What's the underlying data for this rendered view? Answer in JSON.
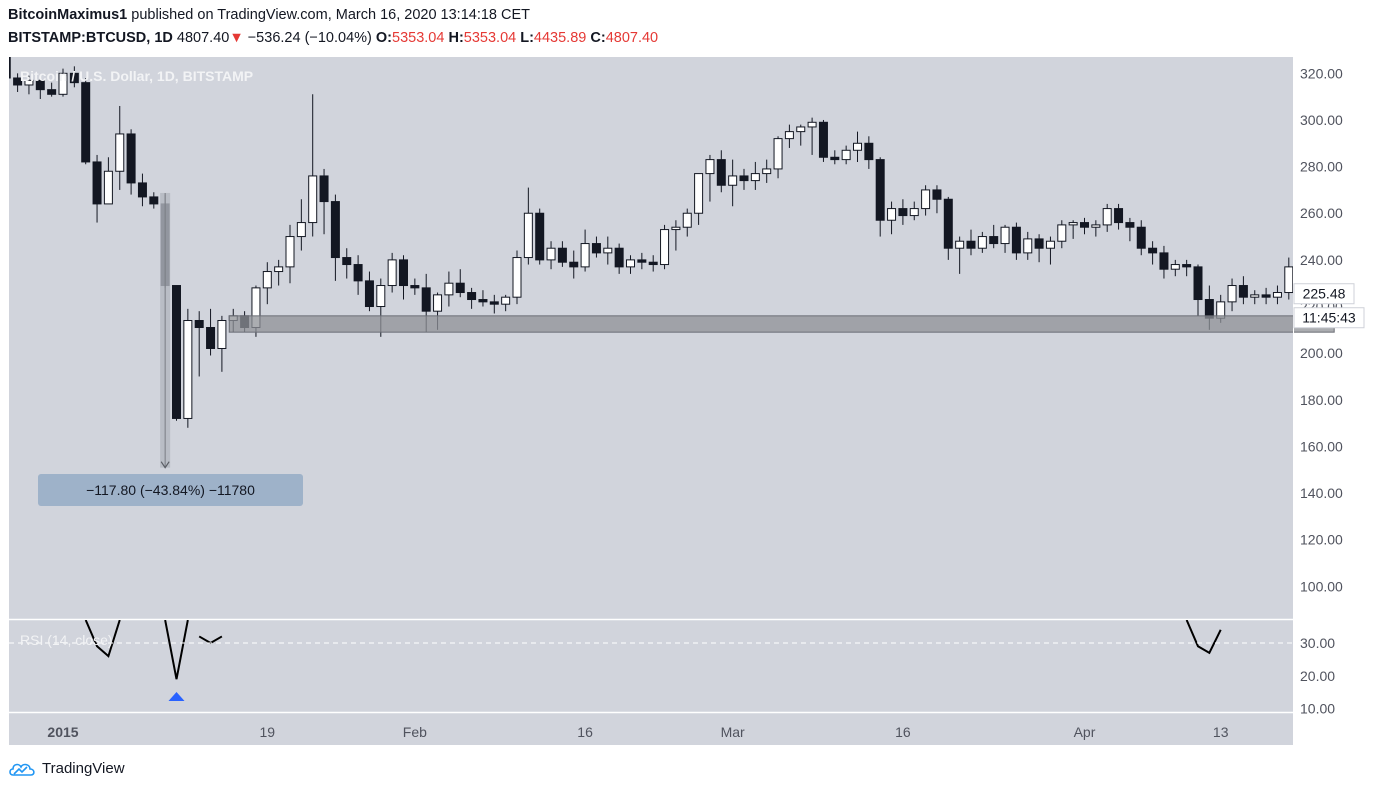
{
  "header": {
    "author": "BitcoinMaximus1",
    "published_text": "published on TradingView.com, March 16, 2020 13:14:18 CET",
    "symbol": "BITSTAMP:BTCUSD, 1D",
    "price": "4807.40",
    "change": "−536.24 (−10.04%)",
    "open_label": "O:",
    "open": "5353.04",
    "high_label": "H:",
    "high": "5353.04",
    "low_label": "L:",
    "low": "4435.89",
    "close_label": "C:",
    "close": "4807.40"
  },
  "chart_title": "Bitcoin / U.S. Dollar, 1D, BITSTAMP",
  "rsi_label": "RSI (14, close)",
  "measure_label": "−117.80 (−43.84%) −11780",
  "last_price_label": "225.48",
  "countdown_label": "11:45:43",
  "footer": {
    "brand": "TradingView"
  },
  "colors": {
    "background": "#d1d4dc",
    "up_candle": "#ffffff",
    "down_candle": "#131722",
    "zone": "#8f9197",
    "measure_box": "#9eb2c9",
    "rsi_line": "#000000",
    "signal_marker": "#2962ff"
  },
  "chart_data": {
    "type": "candlestick",
    "title": "Bitcoin / U.S. Dollar, 1D, BITSTAMP",
    "y_ticks": [
      "320.00",
      "300.00",
      "280.00",
      "260.00",
      "240.00",
      "220.00",
      "200.00",
      "180.00",
      "160.00",
      "140.00",
      "120.00",
      "100.00"
    ],
    "ylim": [
      86,
      327
    ],
    "x_tick_labels": [
      {
        "label": "2015",
        "day": 0,
        "bold": true
      },
      {
        "label": "19",
        "day": 18
      },
      {
        "label": "Feb",
        "day": 31
      },
      {
        "label": "16",
        "day": 46
      },
      {
        "label": "Mar",
        "day": 59
      },
      {
        "label": "16",
        "day": 74
      },
      {
        "label": "Apr",
        "day": 90
      },
      {
        "label": "13",
        "day": 102
      }
    ],
    "x_range_days": [
      -5,
      112
    ],
    "candles": [
      [
        -5,
        330,
        330,
        318,
        318
      ],
      [
        -4,
        318,
        320,
        312,
        315
      ],
      [
        -3,
        315,
        319,
        311,
        317
      ],
      [
        -2,
        317,
        318,
        309,
        313
      ],
      [
        -1,
        313,
        316,
        310,
        311
      ],
      [
        0,
        311,
        322,
        310,
        320
      ],
      [
        1,
        320,
        323,
        314,
        316
      ],
      [
        2,
        316,
        318,
        281,
        282
      ],
      [
        3,
        282,
        285,
        256,
        264
      ],
      [
        4,
        264,
        284,
        264,
        278
      ],
      [
        5,
        278,
        306,
        270,
        294
      ],
      [
        6,
        294,
        296,
        268,
        273
      ],
      [
        7,
        273,
        277,
        263,
        267
      ],
      [
        8,
        267,
        269,
        262,
        264
      ],
      [
        9,
        264,
        268,
        228,
        229
      ],
      [
        10,
        229,
        229,
        171,
        172
      ],
      [
        11,
        172,
        219,
        168,
        214
      ],
      [
        12,
        214,
        218,
        190,
        211
      ],
      [
        13,
        211,
        219,
        199,
        202
      ],
      [
        14,
        202,
        216,
        192,
        214
      ],
      [
        15,
        214,
        219,
        209,
        216
      ],
      [
        16,
        216,
        218,
        209,
        211
      ],
      [
        17,
        211,
        229,
        207,
        228
      ],
      [
        18,
        228,
        239,
        221,
        235
      ],
      [
        19,
        235,
        240,
        229,
        237
      ],
      [
        20,
        237,
        255,
        230,
        250
      ],
      [
        21,
        250,
        266,
        244,
        256
      ],
      [
        22,
        256,
        311,
        250,
        276
      ],
      [
        23,
        276,
        279,
        251,
        265
      ],
      [
        24,
        265,
        268,
        231,
        241
      ],
      [
        25,
        241,
        245,
        232,
        238
      ],
      [
        26,
        238,
        242,
        225,
        231
      ],
      [
        27,
        231,
        235,
        218,
        220
      ],
      [
        28,
        220,
        232,
        207,
        229
      ],
      [
        29,
        229,
        243,
        226,
        240
      ],
      [
        30,
        240,
        242,
        223,
        229
      ],
      [
        31,
        229,
        232,
        225,
        228
      ],
      [
        32,
        228,
        234,
        209,
        218
      ],
      [
        33,
        218,
        226,
        210,
        225
      ],
      [
        34,
        225,
        235,
        220,
        230
      ],
      [
        35,
        230,
        236,
        224,
        226
      ],
      [
        36,
        226,
        228,
        219,
        223
      ],
      [
        37,
        223,
        227,
        220,
        222
      ],
      [
        38,
        222,
        225,
        217,
        221
      ],
      [
        39,
        221,
        225,
        218,
        224
      ],
      [
        40,
        224,
        244,
        221,
        241
      ],
      [
        41,
        241,
        271,
        238,
        260
      ],
      [
        42,
        260,
        262,
        238,
        240
      ],
      [
        43,
        240,
        248,
        236,
        245
      ],
      [
        44,
        245,
        248,
        237,
        239
      ],
      [
        45,
        239,
        244,
        232,
        237
      ],
      [
        46,
        237,
        253,
        235,
        247
      ],
      [
        47,
        247,
        250,
        241,
        243
      ],
      [
        48,
        243,
        250,
        238,
        245
      ],
      [
        49,
        245,
        247,
        234,
        237
      ],
      [
        50,
        237,
        242,
        234,
        240
      ],
      [
        51,
        240,
        243,
        236,
        239
      ],
      [
        52,
        239,
        242,
        235,
        238
      ],
      [
        53,
        238,
        255,
        236,
        253
      ],
      [
        54,
        253,
        257,
        244,
        254
      ],
      [
        55,
        254,
        262,
        250,
        260
      ],
      [
        56,
        260,
        277,
        255,
        277
      ],
      [
        57,
        277,
        285,
        265,
        283
      ],
      [
        58,
        283,
        287,
        269,
        272
      ],
      [
        59,
        272,
        283,
        263,
        276
      ],
      [
        60,
        276,
        279,
        270,
        274
      ],
      [
        61,
        274,
        282,
        270,
        277
      ],
      [
        62,
        277,
        283,
        273,
        279
      ],
      [
        63,
        279,
        293,
        275,
        292
      ],
      [
        64,
        292,
        298,
        288,
        295
      ],
      [
        65,
        295,
        298,
        289,
        297
      ],
      [
        66,
        297,
        301,
        285,
        299
      ],
      [
        67,
        299,
        300,
        282,
        284
      ],
      [
        68,
        284,
        287,
        281,
        283
      ],
      [
        69,
        283,
        289,
        281,
        287
      ],
      [
        70,
        287,
        295,
        282,
        290
      ],
      [
        71,
        290,
        293,
        279,
        283
      ],
      [
        72,
        283,
        284,
        250,
        257
      ],
      [
        73,
        257,
        265,
        251,
        262
      ],
      [
        74,
        262,
        266,
        255,
        259
      ],
      [
        75,
        259,
        265,
        257,
        262
      ],
      [
        76,
        262,
        272,
        259,
        270
      ],
      [
        77,
        270,
        272,
        260,
        266
      ],
      [
        78,
        266,
        267,
        240,
        245
      ],
      [
        79,
        245,
        250,
        234,
        248
      ],
      [
        80,
        248,
        253,
        242,
        245
      ],
      [
        81,
        245,
        252,
        243,
        250
      ],
      [
        82,
        250,
        255,
        245,
        247
      ],
      [
        83,
        247,
        255,
        243,
        254
      ],
      [
        84,
        254,
        256,
        240,
        243
      ],
      [
        85,
        243,
        252,
        240,
        249
      ],
      [
        86,
        249,
        251,
        239,
        245
      ],
      [
        87,
        245,
        250,
        238,
        248
      ],
      [
        88,
        248,
        257,
        245,
        255
      ],
      [
        89,
        255,
        257,
        249,
        256
      ],
      [
        90,
        256,
        258,
        251,
        254
      ],
      [
        91,
        254,
        257,
        250,
        255
      ],
      [
        92,
        255,
        264,
        252,
        262
      ],
      [
        93,
        262,
        264,
        253,
        256
      ],
      [
        94,
        256,
        258,
        248,
        254
      ],
      [
        95,
        254,
        257,
        242,
        245
      ],
      [
        96,
        245,
        248,
        238,
        243
      ],
      [
        97,
        243,
        246,
        232,
        236
      ],
      [
        98,
        236,
        240,
        233,
        238
      ],
      [
        99,
        238,
        240,
        233,
        237
      ],
      [
        100,
        237,
        238,
        216,
        223
      ],
      [
        101,
        223,
        229,
        210,
        215
      ],
      [
        102,
        215,
        225,
        213,
        222
      ],
      [
        103,
        222,
        232,
        218,
        229
      ],
      [
        104,
        229,
        233,
        221,
        224
      ],
      [
        105,
        224,
        227,
        221,
        225
      ],
      [
        106,
        225,
        228,
        221,
        224
      ],
      [
        107,
        224,
        229,
        221,
        226
      ],
      [
        108,
        226,
        241,
        223,
        237
      ],
      [
        109,
        237,
        242,
        233,
        235
      ],
      [
        110,
        235,
        240,
        231,
        237
      ],
      [
        111,
        237,
        238,
        228,
        231
      ],
      [
        112,
        231,
        234,
        222,
        225
      ]
    ],
    "support_zone": {
      "from_day": 15,
      "to_day": 112,
      "low": 209,
      "high": 216
    },
    "measure": {
      "day": 9,
      "from": 268.7,
      "to": 150.9,
      "change": "−117.80 (−43.84%) −11780"
    },
    "last_price": 225.48,
    "rsi": {
      "label": "RSI (14, close)",
      "y_ticks": [
        "30.00",
        "20.00",
        "10.00"
      ],
      "ylim": [
        9,
        37
      ],
      "oversold_level": 30,
      "segments": [
        [
          [
            2,
            37
          ],
          [
            3,
            29
          ],
          [
            4,
            26
          ],
          [
            5,
            37
          ]
        ],
        [
          [
            9,
            37
          ],
          [
            10,
            19
          ],
          [
            11,
            37
          ]
        ],
        [
          [
            12,
            32
          ],
          [
            13,
            30
          ],
          [
            14,
            32
          ]
        ],
        [
          [
            99,
            37
          ],
          [
            100,
            29
          ],
          [
            101,
            27
          ],
          [
            102,
            34
          ]
        ]
      ],
      "signal_day": 10
    }
  }
}
